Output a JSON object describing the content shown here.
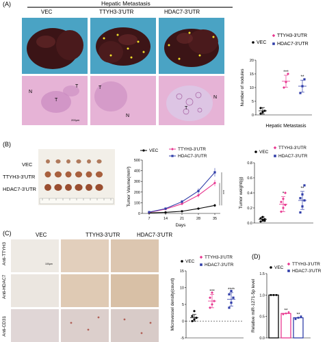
{
  "panelA": {
    "label": "(A)",
    "title": "Hepatic Metastasis",
    "cols": [
      "VEC",
      "TTYH3-3'UTR",
      "HDAC7-3'UTR"
    ],
    "tissue_labels": {
      "N": "N",
      "T": "T"
    },
    "scalebar": "200μm"
  },
  "panelB": {
    "label": "(B)",
    "rows": [
      "VEC",
      "TTYH3-3'UTR",
      "HDAC7-3'UTR"
    ]
  },
  "panelC": {
    "label": "(C)",
    "cols": [
      "VEC",
      "TTYH3-3'UTR",
      "HDAC7-3'UTR"
    ],
    "rows": [
      "Anti-TTYH3",
      "Anti-HDAC7",
      "Anti-CD31"
    ],
    "scalebar": "100μm"
  },
  "panelD": {
    "label": "(D)"
  },
  "colors": {
    "vec": "#000000",
    "ttyh3": "#e8368f",
    "hdac7": "#2f3da8"
  },
  "chart_data": [
    {
      "id": "nodules",
      "type": "scatter",
      "ylabel": "Number of nodules",
      "xlabel": "Hepatic Metastasis",
      "ylim": [
        0,
        20
      ],
      "yticks": [
        0,
        5,
        10,
        15,
        20
      ],
      "legend": [
        "VEC",
        "TTYH3-3'UTR",
        "HDAC7-3'UTR"
      ],
      "series": [
        {
          "name": "VEC",
          "mean": 1.5,
          "sd": 1.2,
          "points": [
            0.5,
            1,
            1.5,
            2.5
          ]
        },
        {
          "name": "TTYH3-3'UTR",
          "mean": 12.3,
          "sd": 2.2,
          "points": [
            10,
            12,
            15
          ],
          "sig": "***"
        },
        {
          "name": "HDAC7-3'UTR",
          "mean": 10.5,
          "sd": 2.2,
          "points": [
            8,
            10.5,
            13
          ],
          "sig": "**"
        }
      ]
    },
    {
      "id": "tumor_volume",
      "type": "line",
      "ylabel": "Tumor Volume(mm³)",
      "xlabel": "Days",
      "x": [
        7,
        14,
        21,
        28,
        35
      ],
      "xticks": [
        "7",
        "14",
        "21",
        "28",
        "35"
      ],
      "ylim": [
        0,
        500
      ],
      "yticks": [
        0,
        100,
        200,
        300,
        400,
        500
      ],
      "legend": [
        "VEC",
        "TTYH3-3'UTR",
        "HDAC7-3'UTR"
      ],
      "sig": "***",
      "series": [
        {
          "name": "VEC",
          "values": [
            5,
            10,
            20,
            45,
            75
          ],
          "err": [
            2,
            3,
            5,
            8,
            15
          ]
        },
        {
          "name": "TTYH3-3'UTR",
          "values": [
            10,
            40,
            90,
            170,
            285
          ],
          "err": [
            3,
            6,
            12,
            20,
            30
          ]
        },
        {
          "name": "HDAC7-3'UTR",
          "values": [
            12,
            45,
            110,
            210,
            385
          ],
          "err": [
            3,
            8,
            15,
            25,
            40
          ]
        }
      ]
    },
    {
      "id": "tumor_weight",
      "type": "scatter",
      "ylabel": "Tumor weight(g)",
      "ylim": [
        0,
        0.8
      ],
      "yticks": [
        0.0,
        0.2,
        0.4,
        0.6,
        0.8
      ],
      "legend": [
        "VEC",
        "TTYH3-3'UTR",
        "HDAC7-3'UTR"
      ],
      "series": [
        {
          "name": "VEC",
          "mean": 0.05,
          "sd": 0.03,
          "points": [
            0.02,
            0.04,
            0.05,
            0.06,
            0.08,
            0.03
          ]
        },
        {
          "name": "TTYH3-3'UTR",
          "mean": 0.25,
          "sd": 0.1,
          "points": [
            0.15,
            0.2,
            0.24,
            0.28,
            0.32,
            0.4
          ],
          "sig": "*"
        },
        {
          "name": "HDAC7-3'UTR",
          "mean": 0.3,
          "sd": 0.12,
          "points": [
            0.14,
            0.22,
            0.3,
            0.33,
            0.38,
            0.5
          ],
          "sig": "**"
        }
      ]
    },
    {
      "id": "microvessel",
      "type": "scatter",
      "ylabel": "Microvessel density(count)",
      "ylim": [
        -5,
        15
      ],
      "yticks": [
        -5,
        0,
        5,
        10,
        15
      ],
      "legend": [
        "VEC",
        "TTYH3-3'UTR",
        "HDAC7-3'UTR"
      ],
      "series": [
        {
          "name": "VEC",
          "mean": 1,
          "sd": 1,
          "points": [
            0,
            0.5,
            1,
            1.5,
            3
          ]
        },
        {
          "name": "TTYH3-3'UTR",
          "mean": 6,
          "sd": 2,
          "points": [
            4,
            5,
            6,
            7,
            8.5
          ],
          "sig": "***"
        },
        {
          "name": "HDAC7-3'UTR",
          "mean": 6.5,
          "sd": 2,
          "points": [
            4,
            5.5,
            7,
            8,
            9
          ],
          "sig": "****"
        }
      ]
    },
    {
      "id": "mir",
      "type": "bar",
      "ylabel": "Relative miR-1271-5p level",
      "ylim": [
        0,
        1.5
      ],
      "yticks": [
        0.0,
        0.5,
        1.0,
        1.5
      ],
      "legend": [
        "VEC",
        "TTYH3-3'UTR",
        "HDAC7-3'UTR"
      ],
      "series": [
        {
          "name": "VEC",
          "value": 1.0,
          "points": [
            1,
            1,
            1
          ]
        },
        {
          "name": "TTYH3-3'UTR",
          "value": 0.57,
          "points": [
            0.55,
            0.57,
            0.6
          ],
          "sig": "**"
        },
        {
          "name": "HDAC7-3'UTR",
          "value": 0.47,
          "points": [
            0.44,
            0.47,
            0.5
          ],
          "sig": "**"
        }
      ]
    }
  ]
}
